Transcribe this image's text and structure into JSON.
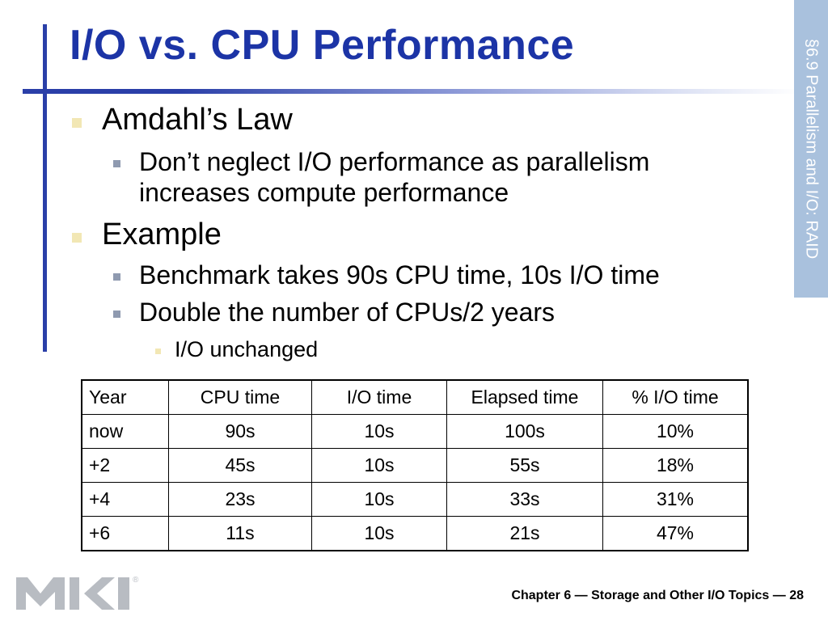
{
  "slide": {
    "title": "I/O vs. CPU Performance",
    "section_tab": "§6.9 Parallelism and I/O: RAID",
    "bullets": [
      {
        "level": 1,
        "text": "Amdahl’s Law"
      },
      {
        "level": 2,
        "text": "Don’t neglect I/O performance as parallelism"
      },
      {
        "level": 2,
        "text": "increases compute performance"
      },
      {
        "level": 1,
        "text": "Example"
      },
      {
        "level": 2,
        "text": "Benchmark takes 90s CPU time, 10s I/O time"
      },
      {
        "level": 2,
        "text": "Double the number of CPUs/2 years"
      },
      {
        "level": 3,
        "text": "I/O unchanged"
      }
    ],
    "table": {
      "headers": [
        "Year",
        "CPU time",
        "I/O time",
        "Elapsed time",
        "% I/O time"
      ],
      "rows": [
        [
          "now",
          "90s",
          "10s",
          "100s",
          "10%"
        ],
        [
          "+2",
          "45s",
          "10s",
          "55s",
          "18%"
        ],
        [
          "+4",
          "23s",
          "10s",
          "33s",
          "31%"
        ],
        [
          "+6",
          "11s",
          "10s",
          "21s",
          "47%"
        ]
      ]
    },
    "logo_mark": "®",
    "footer": "Chapter 6 — Storage and Other I/O Topics — 28"
  },
  "colors": {
    "title": "#1c34a6",
    "accent_bar": "#2a3fa8",
    "side_tab": "#a9c1dd",
    "bullet_level1": "#f2e7b4",
    "bullet_level2": "#8f9ab0"
  }
}
